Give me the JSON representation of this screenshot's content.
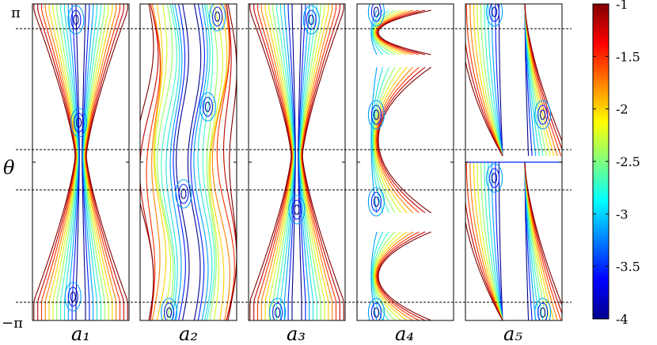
{
  "chart_data": {
    "type": "contour",
    "ylabel": "θ",
    "yticks": [
      "π",
      "−π"
    ],
    "ylim": [
      "−π",
      "π"
    ],
    "panels": [
      {
        "label": "a₁",
        "shape": "waist_center",
        "minima": [
          [
            0.45,
            0.9
          ],
          [
            0.48,
            0.25
          ],
          [
            0.42,
            -0.85
          ]
        ]
      },
      {
        "label": "a₂",
        "shape": "wide_flat",
        "minima": [
          [
            0.8,
            0.92
          ],
          [
            0.7,
            0.35
          ],
          [
            0.45,
            -0.2
          ],
          [
            0.3,
            -0.95
          ]
        ]
      },
      {
        "label": "a₃",
        "shape": "waist_center",
        "minima": [
          [
            0.65,
            0.9
          ],
          [
            0.5,
            -0.3
          ],
          [
            0.3,
            -0.95
          ]
        ]
      },
      {
        "label": "a₄",
        "shape": "c_shape",
        "minima": [
          [
            0.2,
            0.95
          ],
          [
            0.2,
            0.3
          ],
          [
            0.2,
            -0.25
          ],
          [
            0.2,
            -0.95
          ]
        ]
      },
      {
        "label": "a₅",
        "shape": "split",
        "minima": [
          [
            0.3,
            0.95
          ],
          [
            0.8,
            0.3
          ],
          [
            0.3,
            -0.1
          ],
          [
            0.8,
            -0.95
          ]
        ]
      }
    ],
    "dashed_lines_theta": [
      2.65,
      0.25,
      -0.55,
      -2.78
    ],
    "colorbar": {
      "ticks": [
        "-1",
        "-1.5",
        "-2",
        "-2.5",
        "-3",
        "-3.5",
        "-4"
      ],
      "min": -4,
      "max": -1,
      "colormap": "jet"
    }
  },
  "colors": {
    "levels": [
      "#00008f",
      "#0020ff",
      "#00a0ff",
      "#20e0e0",
      "#40ffbf",
      "#90ff60",
      "#d0ff20",
      "#ffd000",
      "#ff8000",
      "#ff3000",
      "#c00000",
      "#800000"
    ]
  }
}
